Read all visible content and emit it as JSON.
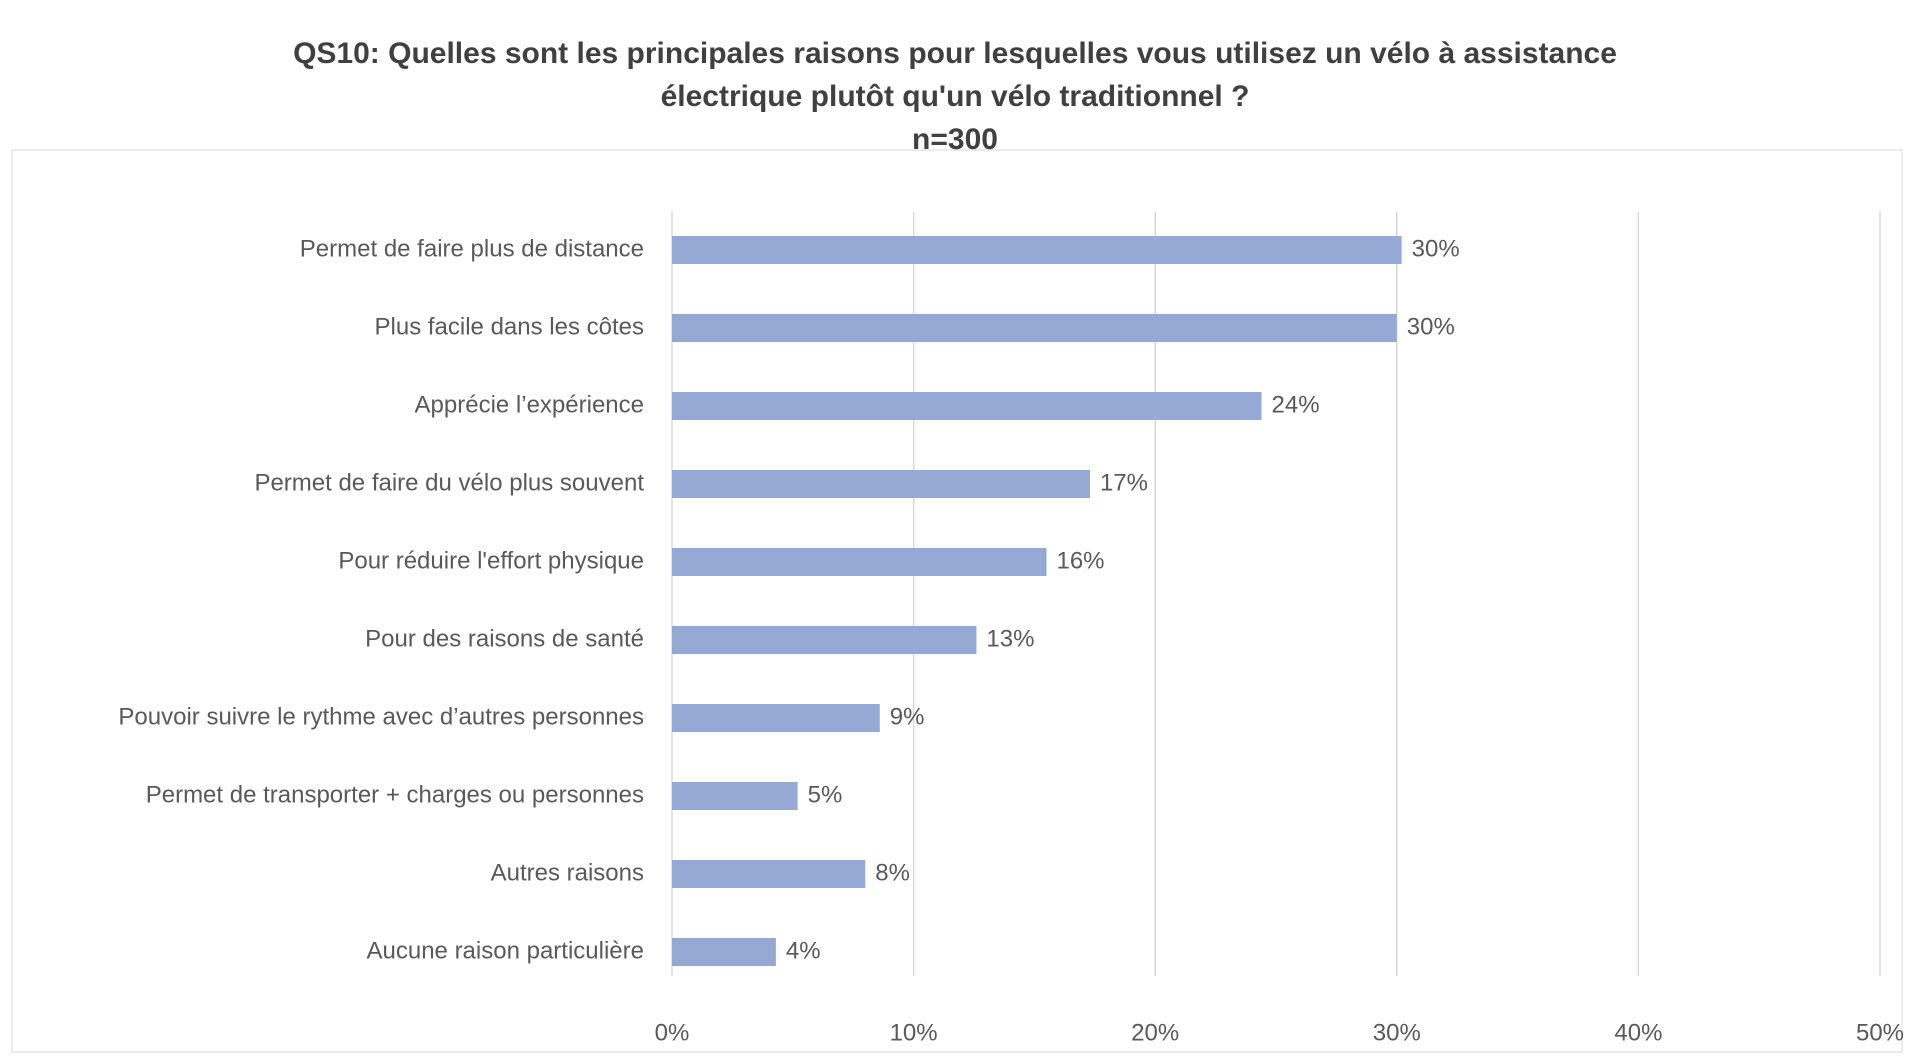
{
  "chart_data": {
    "type": "bar",
    "orientation": "horizontal",
    "title": [
      "QS10: Quelles sont les principales raisons pour lesquelles vous utilisez un vélo à assistance",
      "électrique plutôt qu'un vélo traditionnel ?"
    ],
    "subtitle": "n=300",
    "categories": [
      "Permet de faire plus de distance",
      "Plus facile dans les côtes",
      "Apprécie l’expérience",
      "Permet de faire du vélo plus souvent",
      "Pour réduire l'effort physique",
      "Pour des raisons de santé",
      "Pouvoir suivre le rythme avec d’autres personnes",
      "Permet de transporter +  charges ou personnes",
      "Autres raisons",
      "Aucune raison particulière"
    ],
    "values": [
      30.2,
      30.0,
      24.4,
      17.3,
      15.5,
      12.6,
      8.6,
      5.2,
      8.0,
      4.3
    ],
    "value_labels": [
      "30%",
      "30%",
      "24%",
      "17%",
      "16%",
      "13%",
      "9%",
      "5%",
      "8%",
      "4%"
    ],
    "color": "#94a9d3",
    "xlim": [
      0,
      50
    ],
    "xticks": [
      {
        "value": 0,
        "label": "0%"
      },
      {
        "value": 10,
        "label": "10%"
      },
      {
        "value": 20,
        "label": "20%"
      },
      {
        "value": 30,
        "label": "30%"
      },
      {
        "value": 40,
        "label": "40%"
      },
      {
        "value": 50,
        "label": "50%"
      }
    ],
    "grid": true
  }
}
